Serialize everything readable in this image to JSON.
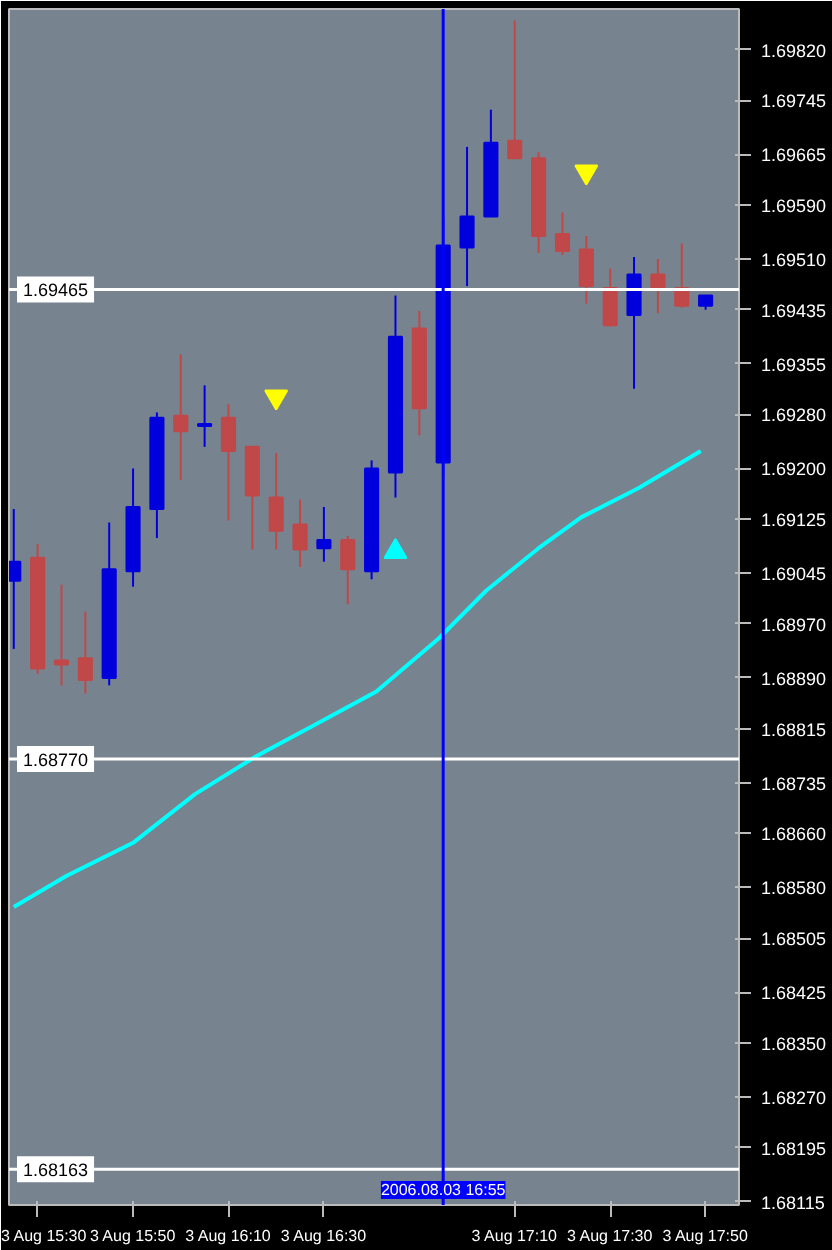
{
  "chart_data": {
    "type": "candlestick",
    "x": [
      "2006-08-03T15:25",
      "2006-08-03T15:30",
      "2006-08-03T15:35",
      "2006-08-03T15:40",
      "2006-08-03T15:45",
      "2006-08-03T15:50",
      "2006-08-03T15:55",
      "2006-08-03T16:00",
      "2006-08-03T16:05",
      "2006-08-03T16:10",
      "2006-08-03T16:15",
      "2006-08-03T16:20",
      "2006-08-03T16:25",
      "2006-08-03T16:30",
      "2006-08-03T16:35",
      "2006-08-03T16:40",
      "2006-08-03T16:45",
      "2006-08-03T16:50",
      "2006-08-03T16:55",
      "2006-08-03T17:00",
      "2006-08-03T17:05",
      "2006-08-03T17:10",
      "2006-08-03T17:15",
      "2006-08-03T17:20",
      "2006-08-03T17:25",
      "2006-08-03T17:30",
      "2006-08-03T17:35",
      "2006-08-03T17:40",
      "2006-08-03T17:45",
      "2006-08-03T17:50"
    ],
    "ohlc": [
      [
        1.69034,
        1.6914,
        1.68933,
        1.69062
      ],
      [
        1.69068,
        1.69088,
        1.68896,
        1.68904
      ],
      [
        1.68916,
        1.69028,
        1.68879,
        1.6891
      ],
      [
        1.68919,
        1.68988,
        1.68867,
        1.68887
      ],
      [
        1.6889,
        1.6912,
        1.68879,
        1.69051
      ],
      [
        1.69048,
        1.692,
        1.69025,
        1.69143
      ],
      [
        1.6914,
        1.69283,
        1.69097,
        1.69275
      ],
      [
        1.69278,
        1.69369,
        1.69183,
        1.69255
      ],
      [
        1.69263,
        1.69323,
        1.69232,
        1.69266
      ],
      [
        1.69275,
        1.69295,
        1.69123,
        1.69226
      ],
      [
        1.69232,
        1.69232,
        1.6908,
        1.6916
      ],
      [
        1.69157,
        1.69223,
        1.6908,
        1.69108
      ],
      [
        1.69117,
        1.69154,
        1.69054,
        1.6908
      ],
      [
        1.69082,
        1.69143,
        1.69062,
        1.69094
      ],
      [
        1.69094,
        1.691,
        1.68999,
        1.69051
      ],
      [
        1.69048,
        1.69212,
        1.69036,
        1.692
      ],
      [
        1.69194,
        1.69456,
        1.69157,
        1.69395
      ],
      [
        1.69407,
        1.69433,
        1.69249,
        1.69289
      ],
      [
        1.69209,
        1.6957,
        1.69191,
        1.6953
      ],
      [
        1.69527,
        1.69676,
        1.6947,
        1.69573
      ],
      [
        1.69573,
        1.69731,
        1.69573,
        1.69682
      ],
      [
        1.69685,
        1.69863,
        1.69659,
        1.69659
      ],
      [
        1.69659,
        1.69668,
        1.69519,
        1.69544
      ],
      [
        1.69547,
        1.69579,
        1.69516,
        1.69522
      ],
      [
        1.69524,
        1.69544,
        1.69444,
        1.6947
      ],
      [
        1.69467,
        1.69496,
        1.6941,
        1.69412
      ],
      [
        1.69427,
        1.69513,
        1.69318,
        1.69487
      ],
      [
        1.69487,
        1.6951,
        1.6943,
        1.69467
      ],
      [
        1.69467,
        1.69533,
        1.69438,
        1.69441
      ],
      [
        1.69441,
        1.69456,
        1.69435,
        1.69456
      ]
    ],
    "colors": [
      "#0000dd",
      "#c04848",
      "#c04848",
      "#c04848",
      "#0000dd",
      "#0000dd",
      "#0000dd",
      "#c04848",
      "#0000dd",
      "#c04848",
      "#c04848",
      "#c04848",
      "#c04848",
      "#0000dd",
      "#c04848",
      "#0000dd",
      "#0000dd",
      "#c04848",
      "#0000dd",
      "#0000dd",
      "#0000dd",
      "#c04848",
      "#c04848",
      "#c04848",
      "#c04848",
      "#c04848",
      "#0000dd",
      "#c04848",
      "#c04848",
      "#0000dd"
    ],
    "series": [
      {
        "type": "line",
        "color": "#00ffff",
        "x": [
          "2006-08-03T15:25",
          "2006-08-03T15:36",
          "2006-08-03T15:50",
          "2006-08-03T16:03",
          "2006-08-03T16:16",
          "2006-08-03T16:29",
          "2006-08-03T16:41",
          "2006-08-03T16:54",
          "2006-08-03T17:04",
          "2006-08-03T17:15",
          "2006-08-03T17:24",
          "2006-08-03T17:36",
          "2006-08-03T17:49"
        ],
        "values": [
          1.68551,
          1.68597,
          1.68646,
          1.68718,
          1.68775,
          1.68824,
          1.6887,
          1.68948,
          1.69019,
          1.69082,
          1.69128,
          1.69171,
          1.69226
        ]
      },
      {
        "type": "scatter",
        "marker": "triangle_down",
        "color": "#ffff00",
        "x": [
          "2006-08-03T16:20",
          "2006-08-03T17:25"
        ],
        "values": [
          1.69306,
          1.69639
        ]
      },
      {
        "type": "scatter",
        "marker": "triangle",
        "color": "#00ffff",
        "x": [
          "2006-08-03T16:45"
        ],
        "values": [
          1.69077
        ]
      }
    ],
    "xlim": [
      "2006-08-03T15:24",
      "2006-08-03T17:57"
    ],
    "xticks": [
      {
        "value": "2006-08-03T15:30",
        "label": "3 Aug 15:30"
      },
      {
        "value": "2006-08-03T15:50",
        "label": "3 Aug 15:50"
      },
      {
        "value": "2006-08-03T16:10",
        "label": "3 Aug 16:10"
      },
      {
        "value": "2006-08-03T16:30",
        "label": "3 Aug 16:30"
      },
      {
        "value": "2006-08-03T17:10",
        "label": "3 Aug 17:10"
      },
      {
        "value": "2006-08-03T17:30",
        "label": "3 Aug 17:30"
      },
      {
        "value": "2006-08-03T17:50",
        "label": "3 Aug 17:50"
      }
    ],
    "ylim": [
      1.6811,
      1.6988
    ],
    "yticks": [
      {
        "value": 1.6982,
        "label": "1.69820"
      },
      1.69745,
      1.69665,
      {
        "value": 1.6959,
        "label": "1.69590"
      },
      {
        "value": 1.6951,
        "label": "1.69510"
      },
      1.69435,
      1.69355,
      {
        "value": 1.6928,
        "label": "1.69280"
      },
      {
        "value": 1.692,
        "label": "1.69200"
      },
      1.69125,
      1.69045,
      {
        "value": 1.6897,
        "label": "1.68970"
      },
      {
        "value": 1.6889,
        "label": "1.68890"
      },
      1.68815,
      1.68735,
      {
        "value": 1.6866,
        "label": "1.68660"
      },
      {
        "value": 1.6858,
        "label": "1.68580"
      },
      1.68505,
      1.68425,
      {
        "value": 1.6835,
        "label": "1.68350"
      },
      {
        "value": 1.6827,
        "label": "1.68270"
      },
      1.68195,
      1.68115
    ],
    "ref_lines": [
      {
        "axis": "y",
        "value": 1.69465,
        "label": "1.69465",
        "color": "#ffffff"
      },
      {
        "axis": "y",
        "value": 1.6877,
        "label": "1.68770",
        "color": "#ffffff"
      },
      {
        "axis": "y",
        "value": 1.68163,
        "label": "1.68163",
        "color": "#ffffff"
      },
      {
        "axis": "x",
        "value": "2006-08-03T16:55",
        "label": "2006.08.03 16:55",
        "color": "#0000ff"
      }
    ],
    "grid": false
  }
}
